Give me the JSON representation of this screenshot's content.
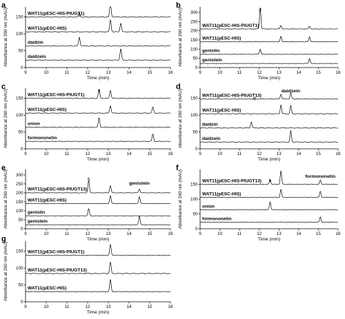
{
  "chart_data": [
    {
      "panel_label": "a",
      "type": "line",
      "xlabel": "Time (min)",
      "ylabel": "Absorbance at 260 nm (mAU)",
      "xlim": [
        9,
        16
      ],
      "ylim": [
        0,
        180
      ],
      "x_ticks": [
        9,
        10,
        11,
        12,
        13,
        14,
        15,
        16
      ],
      "y_ticks": [
        0,
        50,
        100,
        150
      ],
      "baseline_unit": 42,
      "series": [
        {
          "name": "WAT11(pESC-HIS-PIUGT1)",
          "baseline": 150,
          "peaks": [
            [
              11.6,
              12
            ],
            [
              13.1,
              45
            ]
          ]
        },
        {
          "name": "WAT11(pESC-HIS)",
          "baseline": 106,
          "peaks": [
            [
              13.1,
              36
            ],
            [
              13.6,
              26
            ]
          ]
        },
        {
          "name": "daidzin",
          "baseline": 64,
          "peaks": [
            [
              11.6,
              26
            ]
          ]
        },
        {
          "name": "daidzein",
          "baseline": 22,
          "peaks": [
            [
              13.6,
              34
            ]
          ]
        }
      ],
      "annotations": [
        {
          "text": "1",
          "x": 11.6,
          "y": 164
        }
      ]
    },
    {
      "panel_label": "b",
      "type": "line",
      "xlabel": "Time (min)",
      "ylabel": "Absorbance at 260 nm (mAU)",
      "xlim": [
        9,
        16
      ],
      "ylim": [
        0,
        330
      ],
      "x_ticks": [
        9,
        10,
        11,
        12,
        13,
        14,
        15,
        16
      ],
      "y_ticks": [
        0,
        50,
        100,
        150,
        200,
        250,
        300
      ],
      "baseline_unit": 80,
      "series": [
        {
          "name": "WAT11(pESC-HIS-PIUGT1)",
          "baseline": 210,
          "peaks": [
            [
              12.05,
              115
            ],
            [
              13.1,
              18
            ],
            [
              14.55,
              14
            ]
          ]
        },
        {
          "name": "WAT11(pESC-HIS)",
          "baseline": 140,
          "peaks": [
            [
              13.1,
              30
            ],
            [
              14.55,
              28
            ]
          ]
        },
        {
          "name": "genistin",
          "baseline": 72,
          "peaks": [
            [
              12.05,
              28
            ]
          ]
        },
        {
          "name": "genistein",
          "baseline": 22,
          "peaks": [
            [
              14.55,
              28
            ]
          ]
        }
      ],
      "annotations": [
        {
          "text": "2",
          "x": 12.05,
          "y": 330
        }
      ]
    },
    {
      "panel_label": "c",
      "type": "line",
      "xlabel": "Time (min)",
      "ylabel": "Absorbance at 260 nm (mAU)",
      "xlim": [
        9,
        16
      ],
      "ylim": [
        0,
        180
      ],
      "x_ticks": [
        9,
        10,
        11,
        12,
        13,
        14,
        15,
        16
      ],
      "y_ticks": [
        0,
        50,
        100,
        150
      ],
      "baseline_unit": 42,
      "series": [
        {
          "name": "WAT11(pESC-HIS-PIUGT1)",
          "baseline": 150,
          "peaks": [
            [
              12.55,
              26
            ],
            [
              13.1,
              24
            ]
          ]
        },
        {
          "name": "WAT11(pESC-HIS)",
          "baseline": 106,
          "peaks": [
            [
              13.1,
              22
            ],
            [
              15.15,
              18
            ]
          ]
        },
        {
          "name": "onion",
          "baseline": 64,
          "peaks": [
            [
              12.55,
              28
            ]
          ]
        },
        {
          "name": "formononetin",
          "baseline": 22,
          "peaks": [
            [
              15.15,
              22
            ]
          ]
        }
      ],
      "annotations": [
        {
          "text": "3",
          "x": 12.55,
          "y": 180
        }
      ]
    },
    {
      "panel_label": "d",
      "type": "line",
      "xlabel": "Time (min)",
      "ylabel": "Absorbance at 260 nm (mAU)",
      "xlim": [
        9,
        16
      ],
      "ylim": [
        0,
        180
      ],
      "x_ticks": [
        9,
        10,
        11,
        12,
        13,
        14,
        15,
        16
      ],
      "y_ticks": [
        0,
        50,
        100,
        150
      ],
      "baseline_unit": 42,
      "series": [
        {
          "name": "WAT11(pESC-HIS-PIUGT13)",
          "baseline": 148,
          "peaks": [
            [
              11.75,
              3
            ],
            [
              13.1,
              14
            ],
            [
              13.6,
              18
            ]
          ]
        },
        {
          "name": "WAT11(pESC-HIS)",
          "baseline": 104,
          "peaks": [
            [
              13.1,
              26
            ],
            [
              13.6,
              24
            ]
          ]
        },
        {
          "name": "daidzin",
          "baseline": 62,
          "peaks": [
            [
              11.6,
              18
            ]
          ]
        },
        {
          "name": "daidzein",
          "baseline": 20,
          "peaks": [
            [
              13.6,
              34
            ]
          ]
        }
      ],
      "annotations": [
        {
          "text": "4",
          "x": 11.75,
          "y": 156
        },
        {
          "text": "daidzein",
          "x": 13.6,
          "y": 180
        }
      ]
    },
    {
      "panel_label": "e",
      "type": "line",
      "xlabel": "Time (min)",
      "ylabel": "Absorbance at 260 nm (mAU)",
      "xlim": [
        9,
        16
      ],
      "ylim": [
        0,
        330
      ],
      "x_ticks": [
        9,
        10,
        11,
        12,
        13,
        14,
        15,
        16
      ],
      "y_ticks": [
        0,
        50,
        100,
        150,
        200,
        250,
        300
      ],
      "baseline_unit": 80,
      "series": [
        {
          "name": "WAT11(pESC-HIS-PIUGT13)",
          "baseline": 200,
          "peaks": [
            [
              12.05,
              70
            ],
            [
              13.1,
              40
            ],
            [
              14.5,
              22
            ]
          ]
        },
        {
          "name": "WAT11(pESC-HIS)",
          "baseline": 140,
          "peaks": [
            [
              13.1,
              45
            ],
            [
              14.5,
              40
            ]
          ]
        },
        {
          "name": "genistin",
          "baseline": 72,
          "peaks": [
            [
              12.05,
              40
            ]
          ]
        },
        {
          "name": "genistein",
          "baseline": 22,
          "peaks": [
            [
              14.5,
              48
            ]
          ]
        }
      ],
      "annotations": [
        {
          "text": "5",
          "x": 12.05,
          "y": 290
        },
        {
          "text": "genistein",
          "x": 14.5,
          "y": 268
        }
      ]
    },
    {
      "panel_label": "f",
      "type": "line",
      "xlabel": "Time (min)",
      "ylabel": "Absorbance at 260 nm (mAU)",
      "xlim": [
        9,
        16
      ],
      "ylim": [
        0,
        200
      ],
      "x_ticks": [
        9,
        10,
        11,
        12,
        13,
        14,
        15,
        16
      ],
      "y_ticks": [
        0,
        50,
        100,
        150
      ],
      "baseline_unit": 42,
      "series": [
        {
          "name": "WAT11(pESC-HIS-PIUGT13)",
          "baseline": 150,
          "peaks": [
            [
              12.55,
              14
            ],
            [
              13.1,
              45
            ],
            [
              15.1,
              14
            ]
          ]
        },
        {
          "name": "WAT11(pESC-HIS)",
          "baseline": 106,
          "peaks": [
            [
              13.1,
              26
            ],
            [
              15.1,
              20
            ]
          ]
        },
        {
          "name": "onion",
          "baseline": 64,
          "peaks": [
            [
              12.55,
              28
            ]
          ]
        },
        {
          "name": "formononetin",
          "baseline": 22,
          "peaks": [
            [
              15.1,
              18
            ]
          ]
        }
      ],
      "annotations": [
        {
          "text": "6",
          "x": 12.55,
          "y": 172
        },
        {
          "text": "formononetin",
          "x": 15.1,
          "y": 186
        }
      ]
    },
    {
      "panel_label": "g",
      "type": "line",
      "xlabel": "Time (min)",
      "ylabel": "Absorbance at 260 nm (mAU)",
      "xlim": [
        9,
        16
      ],
      "ylim": [
        0,
        180
      ],
      "x_ticks": [
        9,
        10,
        11,
        12,
        13,
        14,
        15,
        16
      ],
      "y_ticks": [
        0,
        50,
        100,
        150
      ],
      "baseline_unit": 42,
      "series": [
        {
          "name": "WAT11(pESC-HIS-PIUGT1)",
          "baseline": 138,
          "peaks": [
            [
              13.1,
              32
            ]
          ]
        },
        {
          "name": "WAT11(pESC-HIS-PIUGT13)",
          "baseline": 84,
          "peaks": [
            [
              13.1,
              34
            ]
          ]
        },
        {
          "name": "WAT11(pESC-HIS)",
          "baseline": 30,
          "peaks": [
            [
              13.1,
              36
            ]
          ]
        }
      ],
      "annotations": []
    }
  ]
}
